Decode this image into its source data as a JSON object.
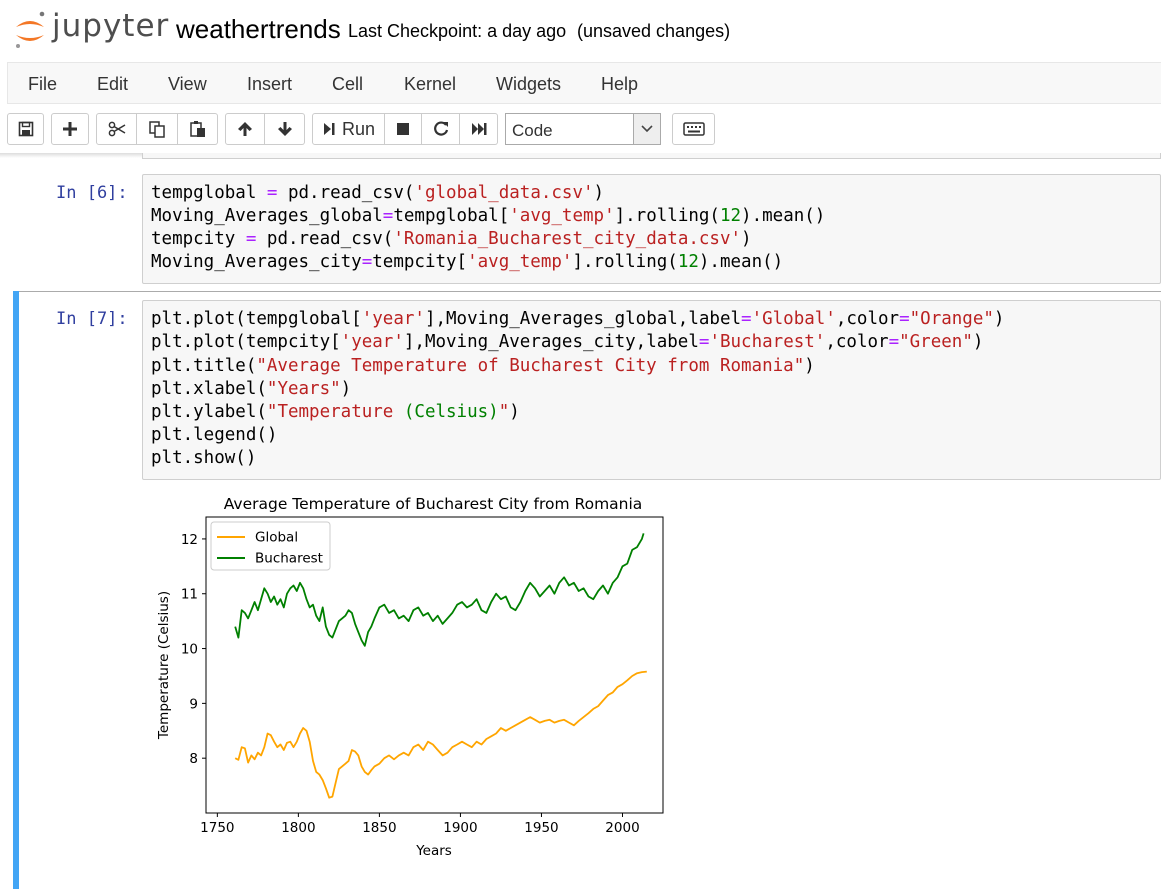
{
  "header": {
    "logo_text": "jupyter",
    "notebook_name": "weathertrends",
    "checkpoint": "Last Checkpoint: a day ago",
    "status": "(unsaved changes)"
  },
  "menu": [
    "File",
    "Edit",
    "View",
    "Insert",
    "Cell",
    "Kernel",
    "Widgets",
    "Help"
  ],
  "toolbar": {
    "run_label": "Run",
    "cell_type": "Code",
    "icons": [
      "save-icon",
      "plus-icon",
      "cut-icon",
      "copy-icon",
      "paste-icon",
      "arrow-up-icon",
      "arrow-down-icon",
      "run-icon",
      "stop-icon",
      "restart-icon",
      "fast-forward-icon",
      "keyboard-icon"
    ]
  },
  "cells": [
    {
      "prompt": "In [6]:",
      "lines": [
        "tempglobal = pd.read_csv('global_data.csv')",
        "Moving_Averages_global=tempglobal['avg_temp'].rolling(12).mean()",
        "tempcity = pd.read_csv('Romania_Bucharest_city_data.csv')",
        "Moving_Averages_city=tempcity['avg_temp'].rolling(12).mean()"
      ]
    },
    {
      "prompt": "In [7]:",
      "lines": [
        "plt.plot(tempglobal['year'],Moving_Averages_global,label='Global',color=\"Orange\")",
        "plt.plot(tempcity['year'],Moving_Averages_city,label='Bucharest',color=\"Green\")",
        "plt.title(\"Average Temperature of Bucharest City from Romania\")",
        "plt.xlabel(\"Years\")",
        "plt.ylabel(\"Temperature (Celsius)\")",
        "plt.legend()",
        "plt.show()"
      ]
    }
  ],
  "chart_data": {
    "type": "line",
    "title": "Average Temperature of Bucharest City from Romania",
    "xlabel": "Years",
    "ylabel": "Temperature (Celsius)",
    "xlim": [
      1743,
      2025
    ],
    "ylim": [
      7.0,
      12.4
    ],
    "xticks": [
      "1750",
      "1800",
      "1850",
      "1900",
      "1950",
      "2000"
    ],
    "yticks": [
      "8",
      "9",
      "10",
      "11",
      "12"
    ],
    "legend": "top-left",
    "grid": false,
    "series": [
      {
        "name": "Global",
        "color": "#ffa500",
        "x": [
          1761,
          1763,
          1765,
          1767,
          1769,
          1771,
          1773,
          1775,
          1777,
          1779,
          1781,
          1783,
          1785,
          1787,
          1789,
          1791,
          1793,
          1795,
          1797,
          1799,
          1801,
          1803,
          1805,
          1807,
          1809,
          1811,
          1813,
          1815,
          1817,
          1819,
          1821,
          1823,
          1825,
          1827,
          1829,
          1831,
          1833,
          1835,
          1837,
          1839,
          1841,
          1843,
          1845,
          1847,
          1850,
          1853,
          1856,
          1859,
          1862,
          1865,
          1868,
          1871,
          1874,
          1877,
          1880,
          1883,
          1886,
          1889,
          1892,
          1895,
          1898,
          1901,
          1904,
          1907,
          1910,
          1913,
          1916,
          1919,
          1922,
          1925,
          1928,
          1931,
          1934,
          1937,
          1940,
          1943,
          1946,
          1949,
          1952,
          1955,
          1958,
          1961,
          1964,
          1967,
          1970,
          1973,
          1976,
          1979,
          1982,
          1985,
          1988,
          1991,
          1994,
          1997,
          2000,
          2003,
          2006,
          2009,
          2012,
          2015
        ],
        "values": [
          8.0,
          7.97,
          8.2,
          8.18,
          7.92,
          8.05,
          7.98,
          8.1,
          8.05,
          8.2,
          8.45,
          8.42,
          8.3,
          8.2,
          8.25,
          8.15,
          8.28,
          8.3,
          8.2,
          8.3,
          8.45,
          8.55,
          8.5,
          8.3,
          7.95,
          7.75,
          7.7,
          7.6,
          7.45,
          7.28,
          7.3,
          7.55,
          7.8,
          7.85,
          7.9,
          7.95,
          8.15,
          8.12,
          8.05,
          7.85,
          7.75,
          7.7,
          7.78,
          7.85,
          7.9,
          8.0,
          8.05,
          7.98,
          8.05,
          8.1,
          8.05,
          8.2,
          8.25,
          8.15,
          8.3,
          8.25,
          8.15,
          8.05,
          8.1,
          8.2,
          8.25,
          8.3,
          8.25,
          8.2,
          8.3,
          8.25,
          8.35,
          8.4,
          8.45,
          8.55,
          8.5,
          8.55,
          8.6,
          8.65,
          8.7,
          8.75,
          8.7,
          8.65,
          8.68,
          8.7,
          8.65,
          8.68,
          8.7,
          8.65,
          8.6,
          8.68,
          8.75,
          8.82,
          8.9,
          8.95,
          9.05,
          9.15,
          9.2,
          9.3,
          9.35,
          9.42,
          9.5,
          9.55,
          9.57,
          9.58
        ]
      },
      {
        "name": "Bucharest",
        "color": "#008000",
        "x": [
          1761,
          1763,
          1765,
          1767,
          1769,
          1771,
          1773,
          1775,
          1777,
          1779,
          1781,
          1783,
          1785,
          1787,
          1789,
          1791,
          1793,
          1795,
          1797,
          1799,
          1801,
          1803,
          1805,
          1807,
          1809,
          1811,
          1813,
          1815,
          1817,
          1819,
          1821,
          1823,
          1825,
          1827,
          1829,
          1831,
          1833,
          1835,
          1837,
          1839,
          1841,
          1843,
          1845,
          1847,
          1850,
          1853,
          1856,
          1859,
          1862,
          1865,
          1868,
          1871,
          1874,
          1877,
          1880,
          1883,
          1886,
          1889,
          1892,
          1895,
          1898,
          1901,
          1904,
          1907,
          1910,
          1913,
          1916,
          1919,
          1922,
          1925,
          1928,
          1931,
          1934,
          1937,
          1940,
          1943,
          1946,
          1949,
          1952,
          1955,
          1958,
          1961,
          1964,
          1967,
          1970,
          1973,
          1976,
          1979,
          1982,
          1985,
          1988,
          1991,
          1994,
          1997,
          2000,
          2003,
          2006,
          2009,
          2012,
          2013
        ],
        "values": [
          10.4,
          10.2,
          10.7,
          10.65,
          10.55,
          10.7,
          10.85,
          10.7,
          10.9,
          11.1,
          11.0,
          10.85,
          10.95,
          10.8,
          10.9,
          10.75,
          11.0,
          11.1,
          11.15,
          11.05,
          11.2,
          11.1,
          10.9,
          10.75,
          10.8,
          10.6,
          10.5,
          10.75,
          10.4,
          10.25,
          10.2,
          10.35,
          10.5,
          10.55,
          10.6,
          10.7,
          10.65,
          10.45,
          10.3,
          10.15,
          10.05,
          10.3,
          10.4,
          10.55,
          10.75,
          10.8,
          10.65,
          10.7,
          10.55,
          10.6,
          10.5,
          10.7,
          10.75,
          10.6,
          10.65,
          10.5,
          10.6,
          10.45,
          10.55,
          10.65,
          10.8,
          10.85,
          10.75,
          10.8,
          10.9,
          10.7,
          10.65,
          10.85,
          11.0,
          10.9,
          10.95,
          10.75,
          10.7,
          10.85,
          11.05,
          11.2,
          11.1,
          10.95,
          11.05,
          11.15,
          11.0,
          11.2,
          11.3,
          11.15,
          11.2,
          11.05,
          11.1,
          10.95,
          10.9,
          11.05,
          11.15,
          11.0,
          11.2,
          11.3,
          11.5,
          11.55,
          11.8,
          11.85,
          12.0,
          12.1
        ]
      }
    ]
  }
}
